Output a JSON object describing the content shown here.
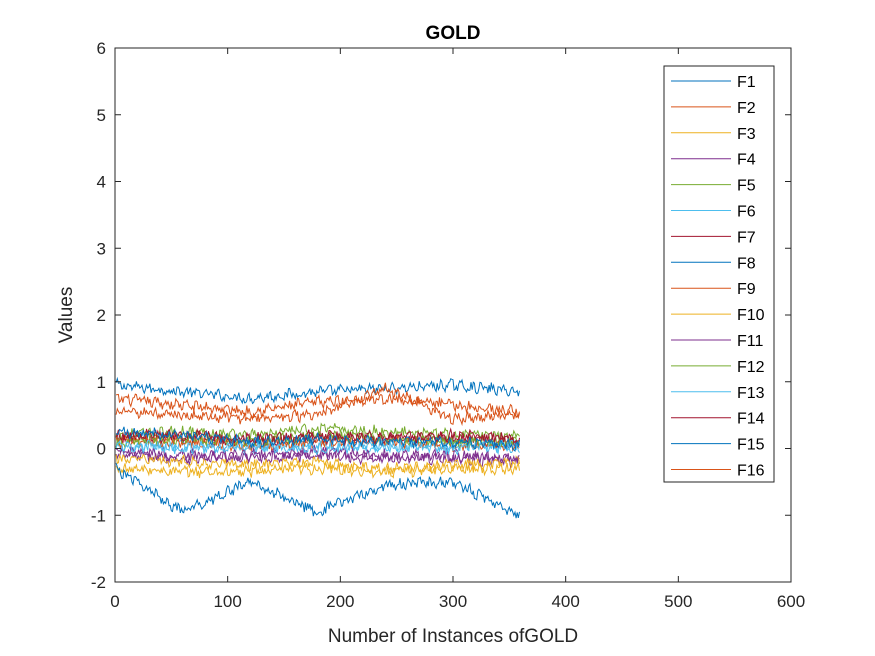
{
  "chart_data": {
    "type": "line",
    "title": "GOLD",
    "xlabel": "Number of Instances ofGOLD",
    "ylabel": "Values",
    "xlim": [
      0,
      600
    ],
    "ylim": [
      -2,
      6
    ],
    "xticks": [
      "0",
      "100",
      "200",
      "300",
      "400",
      "500",
      "600"
    ],
    "yticks": [
      "-2",
      "-1",
      "0",
      "1",
      "2",
      "3",
      "4",
      "5",
      "6"
    ],
    "grid": false,
    "legend_position": "top-right",
    "n_points": 359,
    "series": [
      {
        "name": "F1",
        "color": "#0072BD",
        "x": [
          1,
          60,
          120,
          180,
          240,
          300,
          359
        ],
        "values": [
          0.95,
          0.85,
          0.75,
          0.85,
          0.9,
          0.95,
          0.85
        ]
      },
      {
        "name": "F2",
        "color": "#D95319",
        "x": [
          1,
          60,
          120,
          180,
          240,
          300,
          359
        ],
        "values": [
          0.75,
          0.65,
          0.55,
          0.7,
          0.75,
          0.65,
          0.55
        ]
      },
      {
        "name": "F3",
        "color": "#EDB120",
        "x": [
          1,
          60,
          120,
          180,
          240,
          300,
          359
        ],
        "values": [
          -0.3,
          -0.35,
          -0.35,
          -0.3,
          -0.35,
          -0.3,
          -0.3
        ]
      },
      {
        "name": "F4",
        "color": "#7E2F8E",
        "x": [
          1,
          60,
          120,
          180,
          240,
          300,
          359
        ],
        "values": [
          -0.1,
          -0.15,
          -0.15,
          -0.1,
          -0.15,
          -0.15,
          -0.2
        ]
      },
      {
        "name": "F5",
        "color": "#77AC30",
        "x": [
          1,
          60,
          120,
          180,
          240,
          300,
          359
        ],
        "values": [
          0.2,
          0.25,
          0.2,
          0.3,
          0.25,
          0.2,
          0.2
        ]
      },
      {
        "name": "F6",
        "color": "#4DBEEE",
        "x": [
          1,
          60,
          120,
          180,
          240,
          300,
          359
        ],
        "values": [
          0.0,
          0.05,
          0.0,
          0.05,
          0.0,
          0.05,
          0.0
        ]
      },
      {
        "name": "F7",
        "color": "#A2142F",
        "x": [
          1,
          60,
          120,
          180,
          240,
          300,
          359
        ],
        "values": [
          0.15,
          0.15,
          0.1,
          0.15,
          0.15,
          0.15,
          0.1
        ]
      },
      {
        "name": "F8",
        "color": "#0072BD",
        "x": [
          1,
          60,
          120,
          180,
          240,
          300,
          359
        ],
        "values": [
          -0.3,
          -0.95,
          -0.5,
          -0.95,
          -0.55,
          -0.5,
          -1.0
        ]
      },
      {
        "name": "F9",
        "color": "#D95319",
        "x": [
          1,
          60,
          120,
          180,
          240,
          300,
          359
        ],
        "values": [
          0.1,
          0.1,
          0.05,
          0.1,
          0.1,
          0.05,
          0.05
        ]
      },
      {
        "name": "F10",
        "color": "#EDB120",
        "x": [
          1,
          60,
          120,
          180,
          240,
          300,
          359
        ],
        "values": [
          -0.15,
          -0.2,
          -0.25,
          -0.2,
          -0.3,
          -0.25,
          -0.2
        ]
      },
      {
        "name": "F11",
        "color": "#7E2F8E",
        "x": [
          1,
          60,
          120,
          180,
          240,
          300,
          359
        ],
        "values": [
          -0.05,
          -0.1,
          -0.1,
          -0.05,
          -0.1,
          -0.1,
          -0.15
        ]
      },
      {
        "name": "F12",
        "color": "#77AC30",
        "x": [
          1,
          60,
          120,
          180,
          240,
          300,
          359
        ],
        "values": [
          0.1,
          0.15,
          0.1,
          0.2,
          0.15,
          0.1,
          0.1
        ]
      },
      {
        "name": "F13",
        "color": "#4DBEEE",
        "x": [
          1,
          60,
          120,
          180,
          240,
          300,
          359
        ],
        "values": [
          0.05,
          0.0,
          0.05,
          0.0,
          0.05,
          0.0,
          0.05
        ]
      },
      {
        "name": "F14",
        "color": "#A2142F",
        "x": [
          1,
          60,
          120,
          180,
          240,
          300,
          359
        ],
        "values": [
          0.2,
          0.2,
          0.15,
          0.2,
          0.15,
          0.2,
          0.15
        ]
      },
      {
        "name": "F15",
        "color": "#0072BD",
        "x": [
          1,
          60,
          120,
          180,
          240,
          300,
          359
        ],
        "values": [
          0.25,
          0.2,
          0.1,
          0.15,
          0.1,
          0.1,
          0.05
        ]
      },
      {
        "name": "F16",
        "color": "#D95319",
        "x": [
          1,
          60,
          120,
          180,
          240,
          300,
          359
        ],
        "values": [
          0.55,
          0.5,
          0.45,
          0.5,
          0.9,
          0.45,
          0.5
        ]
      }
    ]
  }
}
